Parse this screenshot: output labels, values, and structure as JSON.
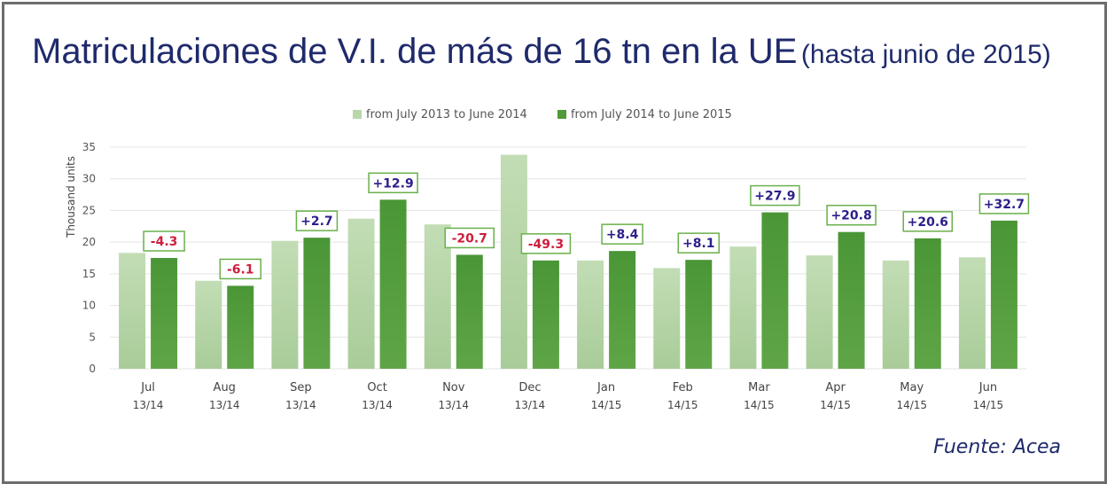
{
  "title": {
    "main": "Matriculaciones de V.I. de más de 16 tn en la UE",
    "sub": "(hasta junio de 2015)"
  },
  "source": "Fuente: Acea",
  "colors": {
    "series1": "#b9d7ab",
    "series2": "#4f9a3a",
    "negative": "#cc1f3c",
    "positive": "#2a1f8a",
    "label_border": "#6ab04c"
  },
  "chart_data": {
    "type": "bar",
    "ylabel": "Thousand units",
    "ylim": [
      0,
      35
    ],
    "yticks": [
      0,
      5,
      10,
      15,
      20,
      25,
      30,
      35
    ],
    "grid": true,
    "legend_position": "top",
    "categories": [
      "Jul",
      "Aug",
      "Sep",
      "Oct",
      "Nov",
      "Dec",
      "Jan",
      "Feb",
      "Mar",
      "Apr",
      "May",
      "Jun"
    ],
    "category_periods": [
      "13/14",
      "13/14",
      "13/14",
      "13/14",
      "13/14",
      "13/14",
      "14/15",
      "14/15",
      "14/15",
      "14/15",
      "14/15",
      "14/15"
    ],
    "series": [
      {
        "name": "from July 2013 to June 2014",
        "values": [
          18.3,
          13.9,
          20.2,
          23.7,
          22.8,
          33.8,
          17.1,
          15.9,
          19.3,
          17.9,
          17.1,
          17.6
        ]
      },
      {
        "name": "from July 2014 to June 2015",
        "values": [
          17.5,
          13.1,
          20.7,
          26.7,
          18.0,
          17.1,
          18.6,
          17.2,
          24.7,
          21.6,
          20.6,
          23.4
        ]
      }
    ],
    "change_labels": [
      "-4.3",
      "-6.1",
      "+2.7",
      "+12.9",
      "-20.7",
      "-49.3",
      "+8.4",
      "+8.1",
      "+27.9",
      "+20.8",
      "+20.6",
      "+32.7"
    ]
  }
}
